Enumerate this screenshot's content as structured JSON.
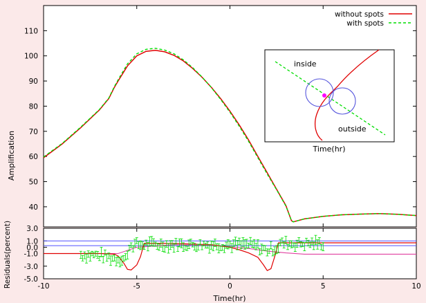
{
  "chart_data": {
    "type": "line",
    "title": "",
    "xlabel": "Time(hr)",
    "xlim": [
      -10,
      10
    ],
    "xticks": [
      -10,
      -5,
      0,
      5,
      10
    ],
    "grid": false,
    "legend_position": "top-right",
    "colors": {
      "without_spots": "#e00000",
      "with_spots": "#00dd00",
      "background": "#fbe9e9",
      "residual_blue": "#5050ff",
      "residual_magenta": "#e040a0",
      "circle": "#5555dd",
      "point": "#ff00ff"
    },
    "main_panel": {
      "ylabel": "Amplification",
      "ylim": [
        32,
        120
      ],
      "yticks": [
        40,
        50,
        60,
        70,
        80,
        90,
        100,
        110
      ],
      "series": [
        {
          "name": "without spots",
          "x": [
            -10,
            -9,
            -8,
            -7,
            -6.5,
            -6.2,
            -6,
            -5.5,
            -5,
            -4.5,
            -4,
            -3.5,
            -3,
            -2.5,
            -2,
            -1.5,
            -1,
            -0.5,
            0,
            0.5,
            1,
            1.5,
            2,
            2.5,
            3,
            3.3,
            3.4,
            4,
            5,
            6,
            7,
            8,
            9,
            10
          ],
          "y": [
            59.5,
            65,
            71.5,
            78.5,
            83,
            87.5,
            90,
            96,
            100,
            101.8,
            102.2,
            101.6,
            100.2,
            98,
            95,
            91.5,
            87.5,
            83,
            78,
            72.5,
            66.5,
            60,
            53.5,
            47,
            40.5,
            34.5,
            34,
            35.2,
            36.2,
            36.8,
            37.1,
            37.3,
            37,
            36.5
          ]
        },
        {
          "name": "with spots",
          "x": [
            -10,
            -9,
            -8,
            -7,
            -6.5,
            -6.2,
            -6,
            -5.5,
            -5,
            -4.5,
            -4,
            -3.5,
            -3,
            -2.5,
            -2,
            -1.5,
            -1,
            -0.5,
            0,
            0.5,
            1,
            1.5,
            2,
            2.5,
            3,
            3.3,
            3.4,
            4,
            5,
            6,
            7,
            8,
            9,
            10
          ],
          "y": [
            59.8,
            65.2,
            71.7,
            78.7,
            83.2,
            87.8,
            90.5,
            96.8,
            100.8,
            102.6,
            103,
            102.3,
            100.8,
            98.4,
            95.3,
            91.6,
            87.4,
            82.7,
            77.6,
            72,
            66,
            59.5,
            53,
            46.8,
            40.3,
            34.5,
            34,
            35.2,
            36.2,
            36.8,
            37.1,
            37.3,
            37,
            36.5
          ]
        }
      ]
    },
    "residual_panel": {
      "ylabel": "Residuals(percent)",
      "ylim": [
        -5,
        3
      ],
      "ytick_labels": [
        "3.0",
        "1.0",
        "0.0",
        "-1.0",
        "-3.0",
        "-5.0"
      ],
      "yticks": [
        3,
        1,
        0,
        -1,
        -3,
        -5
      ],
      "horizontal_lines": [
        0.25,
        1.0
      ],
      "without_spots_residual": {
        "x": [
          -10,
          -7,
          -6.2,
          -6,
          -5.7,
          -5.5,
          -5.3,
          -5.0,
          -4.8,
          -4.6,
          -3,
          -2,
          -1,
          -0.5,
          0,
          0.5,
          1,
          1.5,
          1.8,
          2.0,
          2.2,
          2.4,
          2.6,
          3,
          4,
          6,
          8,
          10
        ],
        "y": [
          -1.0,
          -1.0,
          -1.1,
          -1.4,
          -2.5,
          -3.5,
          -3.6,
          -2.8,
          -1.5,
          0.6,
          0.6,
          0.5,
          0.4,
          0.2,
          0,
          -0.4,
          -0.9,
          -1.6,
          -2.8,
          -3.7,
          -3.4,
          -1.5,
          0.7,
          0.7,
          0.7,
          0.7,
          0.7,
          0.7
        ]
      },
      "magenta_curve": {
        "x": [
          -10,
          -6,
          -5,
          -3,
          -1,
          0,
          1,
          2,
          3,
          4,
          6,
          8,
          10
        ],
        "y": [
          -1.0,
          -1.0,
          0.0,
          0.4,
          0.3,
          0.1,
          -0.2,
          -0.6,
          -0.9,
          -1.1,
          -1.1,
          -1.1,
          -1.1
        ]
      },
      "with_spots_points_x_range": [
        -8,
        5
      ]
    },
    "inset": {
      "xlabel": "Time(hr)",
      "region_labels": [
        "inside",
        "outside"
      ]
    }
  },
  "legend": {
    "without": "without spots",
    "with": "with spots"
  }
}
